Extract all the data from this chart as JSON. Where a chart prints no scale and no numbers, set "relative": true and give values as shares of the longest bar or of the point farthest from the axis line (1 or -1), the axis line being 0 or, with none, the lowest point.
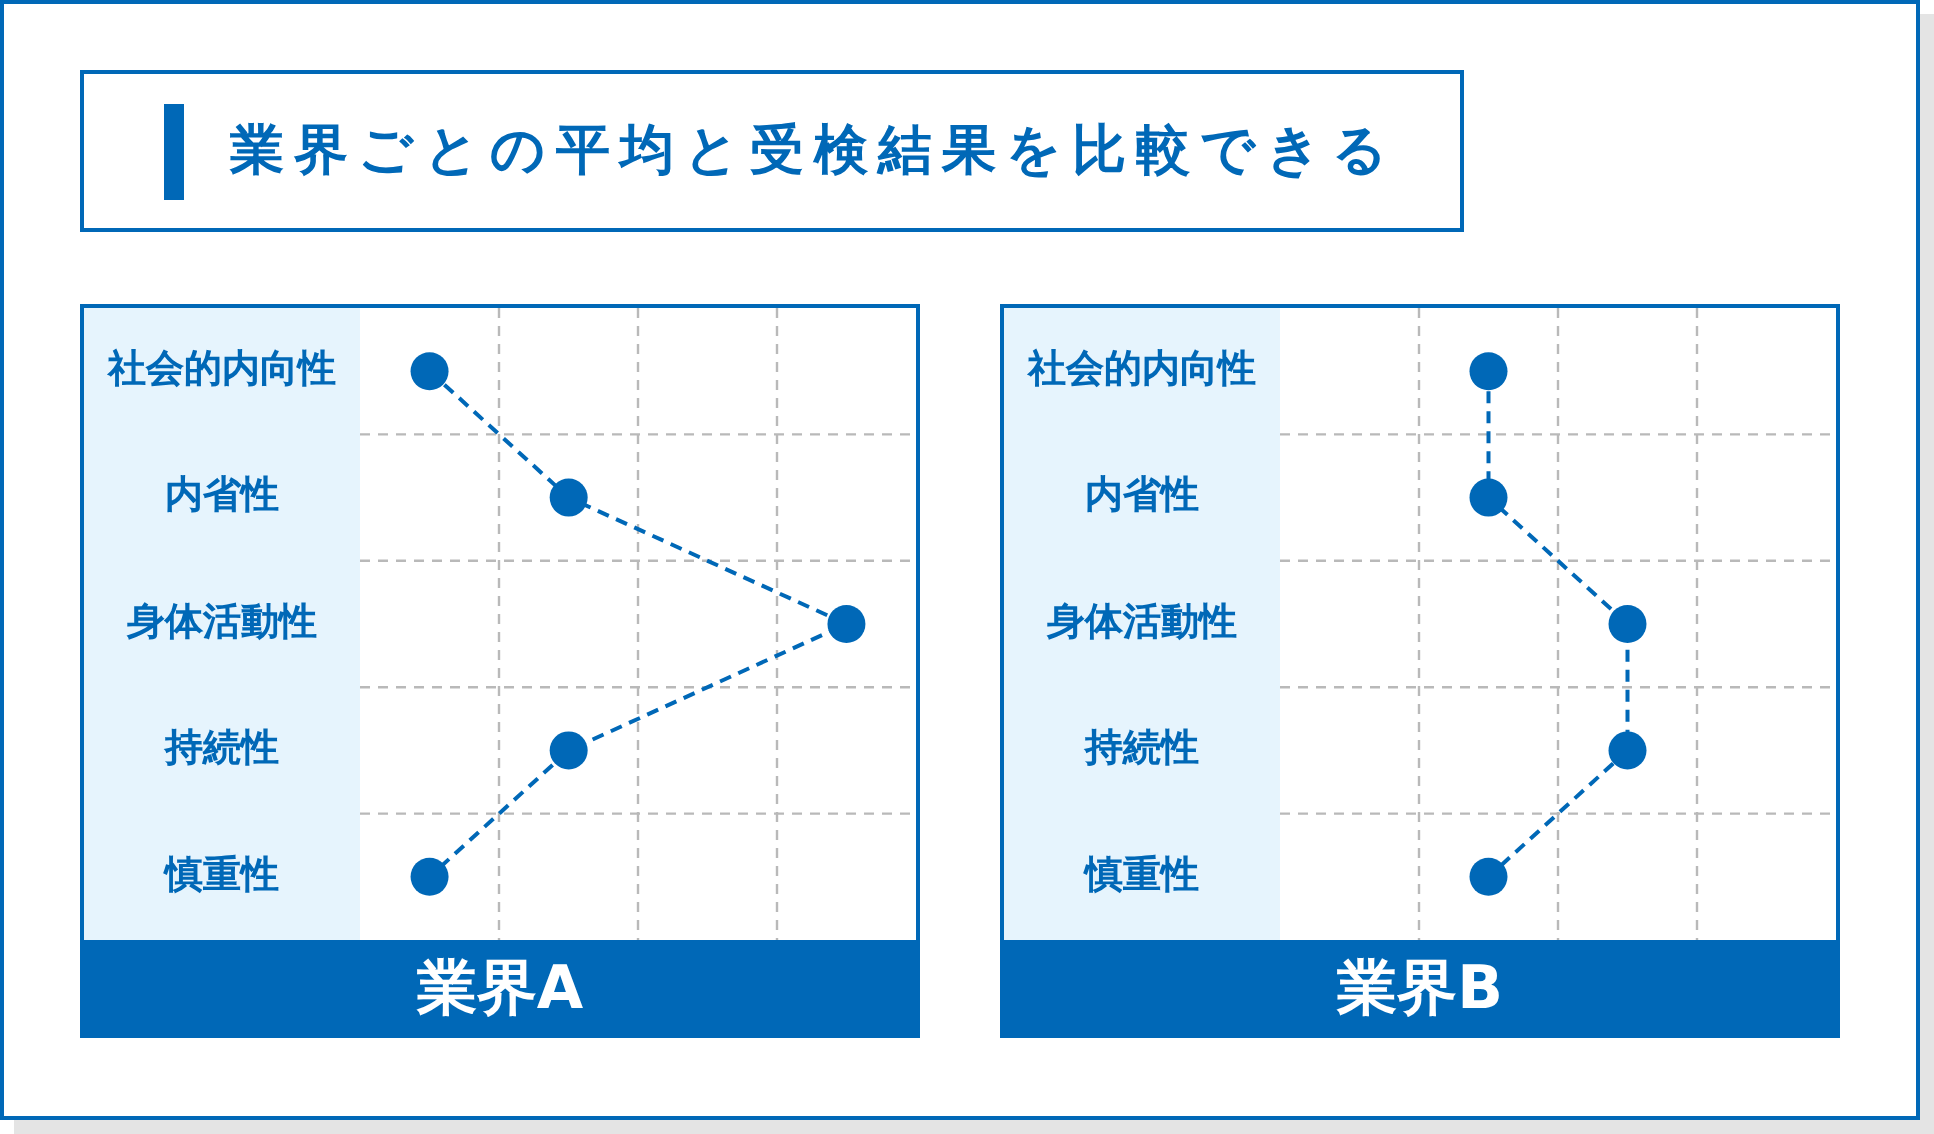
{
  "chart_data": [
    {
      "type": "other",
      "title": "業界ごとの平均と受検結果を比較できる"
    },
    {
      "type": "line",
      "orientation": "horizontal",
      "relative": true,
      "title": "業界A",
      "categories": [
        "社会的内向性",
        "内省性",
        "身体活動性",
        "持続性",
        "慎重性"
      ],
      "values": [
        0.143,
        0.429,
        1,
        0.429,
        0.143
      ],
      "color": "#0068b7",
      "grid": true,
      "marker": "circle",
      "line_style": "dashed"
    },
    {
      "type": "line",
      "orientation": "horizontal",
      "relative": true,
      "title": "業界B",
      "categories": [
        "社会的内向性",
        "内省性",
        "身体活動性",
        "持続性",
        "慎重性"
      ],
      "values": [
        0.6,
        0.6,
        1,
        1,
        0.6
      ],
      "color": "#0068b7",
      "grid": true,
      "marker": "circle",
      "line_style": "dashed"
    }
  ]
}
